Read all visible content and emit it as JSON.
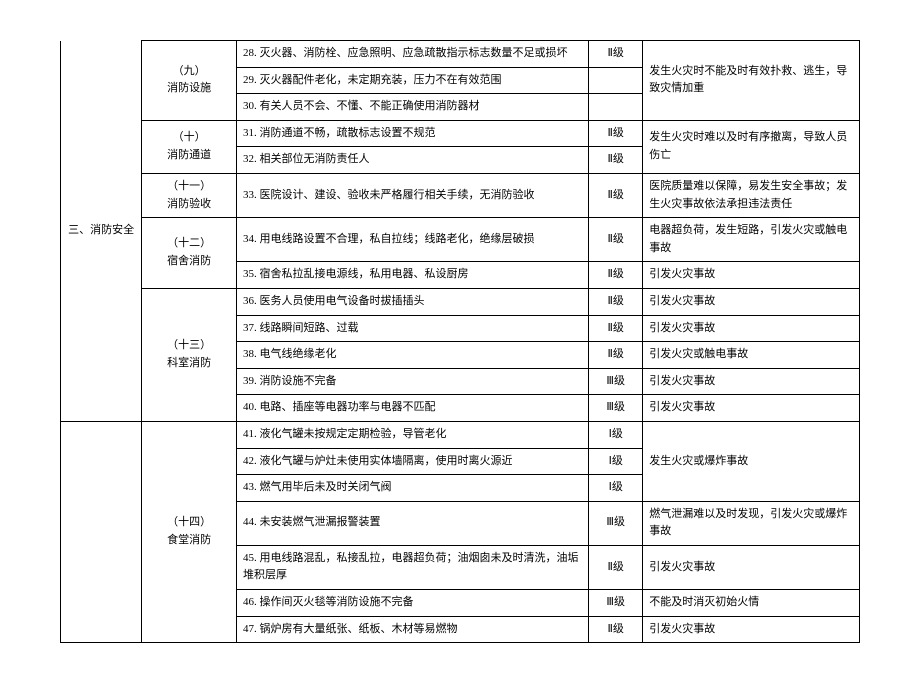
{
  "sec1": {
    "cat": "三、消防安全",
    "groups": [
      {
        "name": "（九）\n消防设施",
        "rows": [
          {
            "n": "28. 灭火器、消防栓、应急照明、应急疏散指示标志数量不足或损坏",
            "l": "Ⅱ级",
            "c": "发生火灾时不能及时有效扑救、逃生，导致灾情加重"
          },
          {
            "n": "29. 灭火器配件老化，未定期充装，压力不在有效范围",
            "l": "",
            "c": ""
          },
          {
            "n": "30. 有关人员不会、不懂、不能正确使用消防器材",
            "l": "",
            "c": ""
          }
        ]
      },
      {
        "name": "（十）\n消防通道",
        "rows": [
          {
            "n": "31. 消防通道不畅，疏散标志设置不规范",
            "l": "Ⅱ级",
            "c": "发生火灾时难以及时有序撤离，导致人员伤亡"
          },
          {
            "n": "32. 相关部位无消防责任人",
            "l": "Ⅱ级",
            "c": ""
          }
        ]
      },
      {
        "name": "（十一）\n消防验收",
        "rows": [
          {
            "n": "33. 医院设计、建设、验收未严格履行相关手续，无消防验收",
            "l": "Ⅱ级",
            "c": "医院质量难以保障，易发生安全事故；发生火灾事故依法承担违法责任"
          }
        ]
      },
      {
        "name": "（十二）\n宿舍消防",
        "rows": [
          {
            "n": "34. 用电线路设置不合理，私自拉线；线路老化，绝缘层破损",
            "l": "Ⅱ级",
            "c": "电器超负荷，发生短路，引发火灾或触电事故"
          },
          {
            "n": "35. 宿舍私拉乱接电源线，私用电器、私设厨房",
            "l": "Ⅱ级",
            "c": "引发火灾事故"
          }
        ]
      },
      {
        "name": "（十三）\n科室消防",
        "rows": [
          {
            "n": "36. 医务人员使用电气设备时拔插插头",
            "l": "Ⅱ级",
            "c": "引发火灾事故"
          },
          {
            "n": "37. 线路瞬间短路、过载",
            "l": "Ⅱ级",
            "c": "引发火灾事故"
          },
          {
            "n": "38. 电气线绝缘老化",
            "l": "Ⅱ级",
            "c": "引发火灾或触电事故"
          },
          {
            "n": "39. 消防设施不完备",
            "l": "Ⅲ级",
            "c": "引发火灾事故"
          },
          {
            "n": "40. 电路、插座等电器功率与电器不匹配",
            "l": "Ⅲ级",
            "c": "引发火灾事故"
          }
        ]
      }
    ]
  },
  "sec2": {
    "cat": "",
    "groups": [
      {
        "name": "（十四）\n食堂消防",
        "rows": [
          {
            "n": "41. 液化气罐未按规定定期检验，导管老化",
            "l": "Ⅰ级",
            "c": "发生火灾或爆炸事故"
          },
          {
            "n": "42. 液化气罐与炉灶未使用实体墙隔离，使用时离火源近",
            "l": "Ⅰ级",
            "c": ""
          },
          {
            "n": "43. 燃气用毕后未及时关闭气阀",
            "l": "Ⅰ级",
            "c": ""
          },
          {
            "n": "44. 未安装燃气泄漏报警装置",
            "l": "Ⅲ级",
            "c": "燃气泄漏难以及时发现，引发火灾或爆炸事故"
          },
          {
            "n": "45. 用电线路混乱，私接乱拉，电器超负荷；油烟囱未及时清洗，油垢堆积层厚",
            "l": "Ⅱ级",
            "c": "引发火灾事故"
          },
          {
            "n": "46. 操作间灭火毯等消防设施不完备",
            "l": "Ⅲ级",
            "c": "不能及时消灭初始火情"
          },
          {
            "n": "47. 锅炉房有大量纸张、纸板、木材等易燃物",
            "l": "Ⅱ级",
            "c": "引发火灾事故"
          }
        ]
      }
    ]
  }
}
